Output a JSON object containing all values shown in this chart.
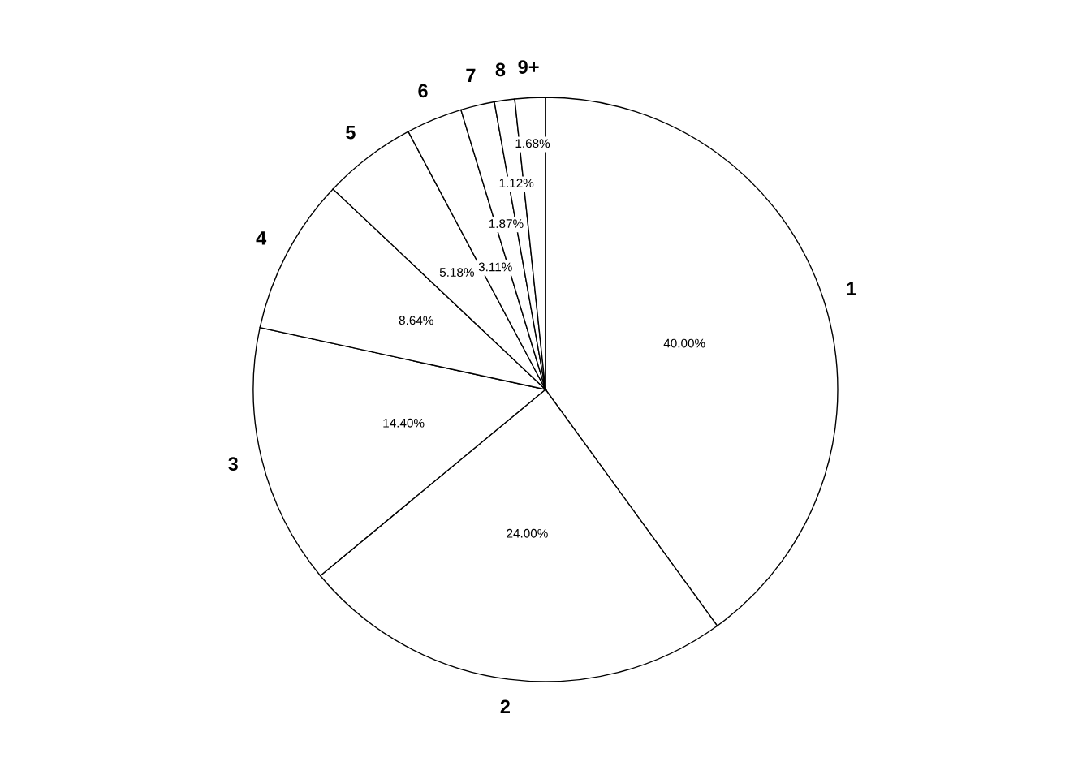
{
  "chart_data": {
    "type": "pie",
    "categories": [
      "1",
      "2",
      "3",
      "4",
      "5",
      "6",
      "7",
      "8",
      "9+"
    ],
    "values": [
      40.0,
      24.0,
      14.4,
      8.64,
      5.18,
      3.11,
      1.87,
      1.12,
      1.68
    ],
    "colors": [
      "#ffffff",
      "#ffffff",
      "#ffffff",
      "#ffffff",
      "#ffffff",
      "#ffffff",
      "#ffffff",
      "#ffffff",
      "#ffffff"
    ],
    "value_labels": [
      "40.00%",
      "24.00%",
      "14.40%",
      "8.64%",
      "5.18%",
      "3.11%",
      "1.87%",
      "1.12%",
      "1.68%"
    ]
  }
}
